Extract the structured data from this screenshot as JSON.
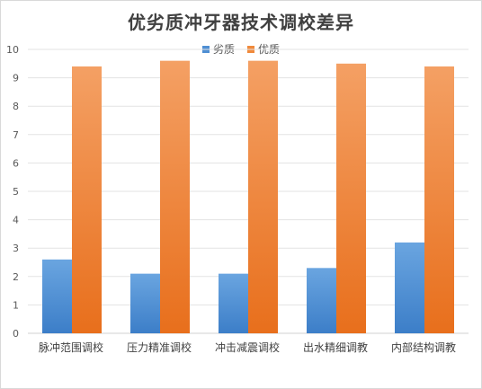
{
  "chart_data": {
    "type": "bar",
    "title": "优劣质冲牙器技术调校差异",
    "categories": [
      "脉冲范围调校",
      "压力精准调校",
      "冲击减震调校",
      "出水精细调教",
      "内部结构调教"
    ],
    "series": [
      {
        "name": "劣质",
        "values": [
          2.6,
          2.1,
          2.1,
          2.3,
          3.2
        ],
        "color": "#4f8fd3"
      },
      {
        "name": "优质",
        "values": [
          9.4,
          9.6,
          9.6,
          9.5,
          9.4
        ],
        "color": "#f08a3c"
      }
    ],
    "ylim": [
      0,
      10
    ],
    "yticks": [
      0,
      1,
      2,
      3,
      4,
      5,
      6,
      7,
      8,
      9,
      10
    ],
    "grid": true,
    "legend_position": "top-center"
  }
}
